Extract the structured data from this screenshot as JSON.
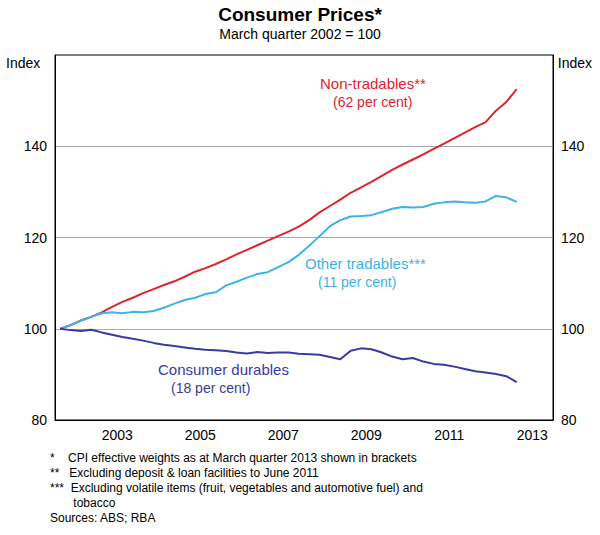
{
  "chart_data": {
    "type": "line",
    "title": "Consumer Prices*",
    "subtitle": "March quarter 2002 = 100",
    "y_label": "Index",
    "x": [
      2002.125,
      2002.375,
      2002.625,
      2002.875,
      2003.125,
      2003.375,
      2003.625,
      2003.875,
      2004.125,
      2004.375,
      2004.625,
      2004.875,
      2005.125,
      2005.375,
      2005.625,
      2005.875,
      2006.125,
      2006.375,
      2006.625,
      2006.875,
      2007.125,
      2007.375,
      2007.625,
      2007.875,
      2008.125,
      2008.375,
      2008.625,
      2008.875,
      2009.125,
      2009.375,
      2009.625,
      2009.875,
      2010.125,
      2010.375,
      2010.625,
      2010.875,
      2011.125,
      2011.375,
      2011.625,
      2011.875,
      2012.125,
      2012.375,
      2012.625,
      2012.875,
      2013.125
    ],
    "series": [
      {
        "name": "Non-tradables**",
        "note": "(62 per cent)",
        "color": "#e0242b",
        "values": [
          100,
          100.8,
          101.8,
          102.6,
          103.6,
          104.8,
          105.9,
          106.8,
          107.8,
          108.7,
          109.6,
          110.4,
          111.4,
          112.5,
          113.3,
          114.2,
          115.2,
          116.3,
          117.3,
          118.3,
          119.3,
          120.3,
          121.3,
          122.4,
          123.8,
          125.5,
          126.9,
          128.3,
          129.8,
          131.0,
          132.2,
          133.5,
          134.8,
          136.0,
          137.1,
          138.2,
          139.4,
          140.6,
          141.8,
          143.0,
          144.2,
          145.3,
          147.8,
          149.7,
          152.5
        ]
      },
      {
        "name": "Other tradables***",
        "note": "(11 per cent)",
        "color": "#3cb4e6",
        "values": [
          100,
          100.8,
          101.8,
          102.6,
          103.4,
          103.6,
          103.4,
          103.7,
          103.6,
          103.9,
          104.6,
          105.5,
          106.3,
          106.8,
          107.6,
          108.0,
          109.5,
          110.3,
          111.2,
          112.0,
          112.4,
          113.5,
          114.6,
          116.2,
          118.2,
          120.3,
          122.5,
          123.8,
          124.6,
          124.7,
          124.9,
          125.6,
          126.3,
          126.7,
          126.6,
          126.7,
          127.4,
          127.7,
          127.9,
          127.7,
          127.6,
          127.9,
          129.1,
          128.8,
          127.8
        ]
      },
      {
        "name": "Consumer durables",
        "note": "(18 per cent)",
        "color": "#3a3aa0",
        "values": [
          100,
          99.7,
          99.5,
          99.8,
          99.2,
          98.7,
          98.2,
          97.8,
          97.4,
          96.9,
          96.5,
          96.2,
          95.9,
          95.6,
          95.4,
          95.3,
          95.1,
          94.8,
          94.6,
          94.9,
          94.7,
          94.8,
          94.8,
          94.5,
          94.4,
          94.3,
          93.8,
          93.3,
          95.2,
          95.7,
          95.5,
          94.8,
          93.9,
          93.3,
          93.6,
          92.8,
          92.3,
          92.1,
          91.7,
          91.2,
          90.7,
          90.4,
          90.1,
          89.6,
          88.3
        ]
      }
    ],
    "xlim": [
      2002,
      2014
    ],
    "xticks": [
      {
        "value": 2003.5,
        "label": "2003"
      },
      {
        "value": 2005.5,
        "label": "2005"
      },
      {
        "value": 2007.5,
        "label": "2007"
      },
      {
        "value": 2009.5,
        "label": "2009"
      },
      {
        "value": 2011.5,
        "label": "2011"
      },
      {
        "value": 2013.5,
        "label": "2013"
      }
    ],
    "ylim": [
      80,
      160
    ],
    "yticks": [
      80,
      100,
      120,
      140
    ],
    "grid": true,
    "notes": [
      "*    CPI effective weights as at March quarter 2013 shown in brackets",
      "**   Excluding deposit & loan facilities to June 2011",
      "***  Excluding volatile items (fruit, vegetables and automotive fuel) and",
      "       tobacco",
      "Sources: ABS; RBA"
    ]
  }
}
